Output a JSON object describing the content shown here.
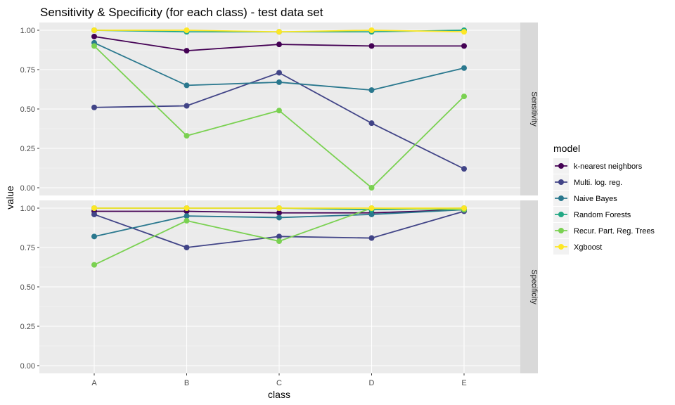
{
  "chart_data": {
    "type": "line",
    "title": "Sensitivity & Specificity (for each class) - test data set",
    "xlabel": "class",
    "ylabel": "value",
    "categories": [
      "A",
      "B",
      "C",
      "D",
      "E"
    ],
    "ylim": [
      0,
      1
    ],
    "yticks": [
      "0.00",
      "0.25",
      "0.50",
      "0.75",
      "1.00"
    ],
    "legend_title": "model",
    "legend_position": "right",
    "grid": true,
    "facets": [
      {
        "label": "Sensitivity",
        "series": [
          {
            "name": "k-nearest neighbors",
            "color": "#440154",
            "values": [
              0.96,
              0.87,
              0.91,
              0.9,
              0.9
            ]
          },
          {
            "name": "Multi. log. reg.",
            "color": "#414487",
            "values": [
              0.51,
              0.52,
              0.73,
              0.41,
              0.12
            ]
          },
          {
            "name": "Naive Bayes",
            "color": "#2A788E",
            "values": [
              0.92,
              0.65,
              0.67,
              0.62,
              0.76
            ]
          },
          {
            "name": "Random Forests",
            "color": "#22A884",
            "values": [
              1.0,
              0.99,
              0.99,
              0.99,
              1.0
            ]
          },
          {
            "name": "Recur. Part. Reg. Trees",
            "color": "#7AD151",
            "values": [
              0.9,
              0.33,
              0.49,
              0.0,
              0.58
            ]
          },
          {
            "name": "Xgboost",
            "color": "#FDE725",
            "values": [
              1.0,
              1.0,
              0.99,
              1.0,
              0.99
            ]
          }
        ]
      },
      {
        "label": "Specificity",
        "series": [
          {
            "name": "k-nearest neighbors",
            "color": "#440154",
            "values": [
              0.98,
              0.98,
              0.97,
              0.97,
              0.99
            ]
          },
          {
            "name": "Multi. log. reg.",
            "color": "#414487",
            "values": [
              0.96,
              0.75,
              0.82,
              0.81,
              0.98
            ]
          },
          {
            "name": "Naive Bayes",
            "color": "#2A788E",
            "values": [
              0.82,
              0.95,
              0.94,
              0.96,
              0.99
            ]
          },
          {
            "name": "Random Forests",
            "color": "#22A884",
            "values": [
              1.0,
              1.0,
              1.0,
              0.99,
              1.0
            ]
          },
          {
            "name": "Recur. Part. Reg. Trees",
            "color": "#7AD151",
            "values": [
              0.64,
              0.92,
              0.79,
              1.0,
              0.99
            ]
          },
          {
            "name": "Xgboost",
            "color": "#FDE725",
            "values": [
              1.0,
              1.0,
              1.0,
              1.0,
              1.0
            ]
          }
        ]
      }
    ]
  }
}
